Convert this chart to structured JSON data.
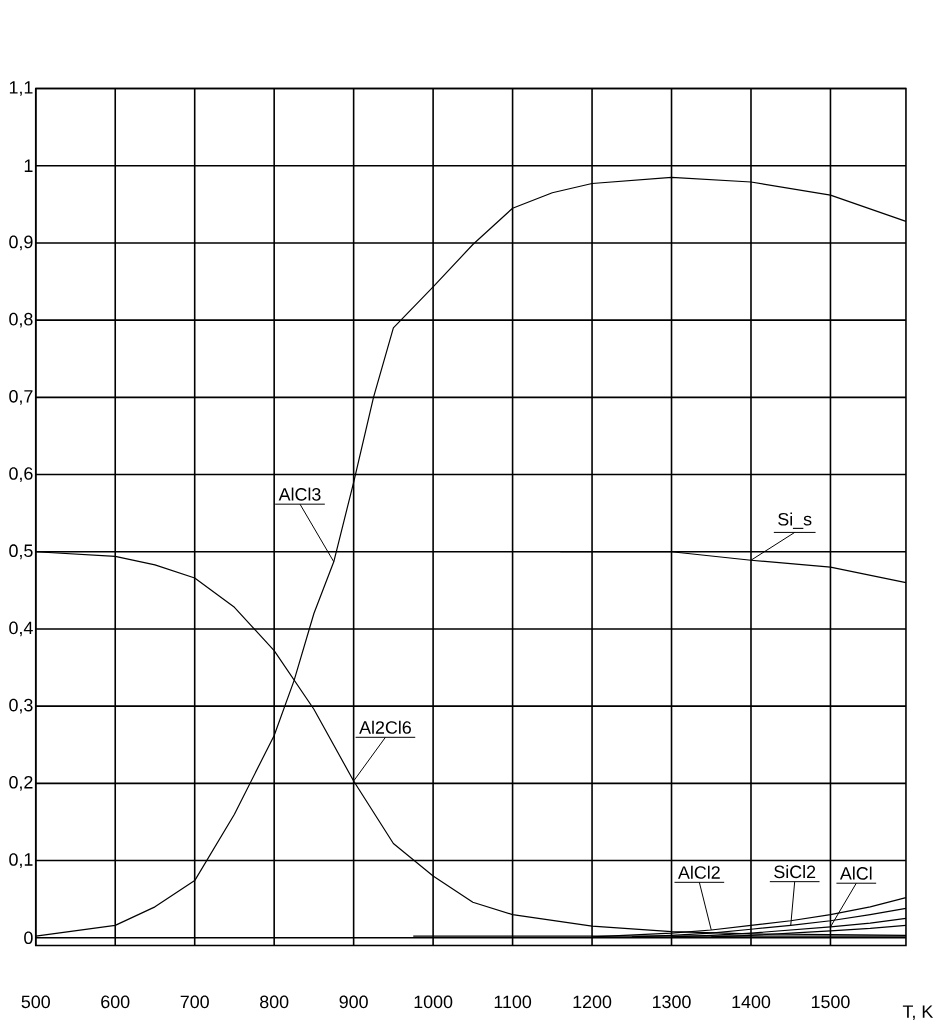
{
  "chart_data": {
    "type": "line",
    "xlabel": "T, K",
    "xlim": [
      500,
      1595
    ],
    "ylim": [
      -0.01,
      1.1
    ],
    "xticks": [
      500,
      600,
      700,
      800,
      900,
      1000,
      1100,
      1200,
      1300,
      1400,
      1500
    ],
    "yticks": [
      {
        "value": 0,
        "label": "0"
      },
      {
        "value": 0.1,
        "label": "0,1"
      },
      {
        "value": 0.2,
        "label": "0,2"
      },
      {
        "value": 0.3,
        "label": "0,3"
      },
      {
        "value": 0.4,
        "label": "0,4"
      },
      {
        "value": 0.5,
        "label": "0,5"
      },
      {
        "value": 0.6,
        "label": "0,6"
      },
      {
        "value": 0.7,
        "label": "0,7"
      },
      {
        "value": 0.8,
        "label": "0,8"
      },
      {
        "value": 0.9,
        "label": "0,9"
      },
      {
        "value": 1,
        "label": "1"
      },
      {
        "value": 1.1,
        "label": "1,1"
      }
    ],
    "grid": true,
    "marker": "none",
    "line_style": "solid",
    "series": [
      {
        "name": "AlCl3",
        "color": "#000000",
        "x": [
          500,
          600,
          650,
          700,
          750,
          800,
          825,
          850,
          875,
          900,
          925,
          950,
          1000,
          1050,
          1100,
          1150,
          1200,
          1300,
          1400,
          1500,
          1595
        ],
        "values": [
          0.002,
          0.016,
          0.04,
          0.074,
          0.16,
          0.262,
          0.333,
          0.42,
          0.487,
          0.59,
          0.7,
          0.79,
          0.843,
          0.898,
          0.945,
          0.965,
          0.977,
          0.985,
          0.979,
          0.962,
          0.928
        ]
      },
      {
        "name": "Al2Cl6",
        "color": "#000000",
        "x": [
          500,
          600,
          650,
          700,
          750,
          800,
          825,
          850,
          900,
          950,
          1000,
          1050,
          1100,
          1200,
          1300,
          1400,
          1500,
          1595
        ],
        "values": [
          0.5,
          0.494,
          0.483,
          0.466,
          0.428,
          0.372,
          0.334,
          0.296,
          0.203,
          0.122,
          0.08,
          0.046,
          0.03,
          0.015,
          0.008,
          0.005,
          0.004,
          0.003
        ]
      },
      {
        "name": "Si_s",
        "color": "#000000",
        "x": [
          1160,
          1300,
          1400,
          1500,
          1595
        ],
        "values": [
          0.5,
          0.5,
          0.489,
          0.48,
          0.46
        ]
      },
      {
        "name": "AlCl2",
        "color": "#000000",
        "x": [
          1200,
          1300,
          1350,
          1400,
          1450,
          1500,
          1550,
          1595
        ],
        "values": [
          0.001,
          0.006,
          0.01,
          0.016,
          0.022,
          0.03,
          0.04,
          0.052
        ]
      },
      {
        "name": "SiCl2",
        "color": "#000000",
        "x": [
          1250,
          1300,
          1350,
          1400,
          1450,
          1500,
          1550,
          1595
        ],
        "values": [
          0.001,
          0.003,
          0.006,
          0.011,
          0.016,
          0.022,
          0.03,
          0.038
        ]
      },
      {
        "name": "AlCl",
        "color": "#000000",
        "x": [
          1300,
          1350,
          1400,
          1450,
          1500,
          1550,
          1595
        ],
        "values": [
          0.001,
          0.003,
          0.006,
          0.01,
          0.014,
          0.019,
          0.025
        ]
      },
      {
        "color": "#000000",
        "x": [
          1350,
          1400,
          1450,
          1500,
          1550,
          1595
        ],
        "values": [
          0.001,
          0.003,
          0.006,
          0.009,
          0.012,
          0.016
        ]
      },
      {
        "color": "#000000",
        "x": [
          975,
          1100,
          1200,
          1300,
          1400,
          1500,
          1595
        ],
        "values": [
          0.002,
          0.002,
          0.002,
          0.002,
          0.002,
          0.002,
          0.002
        ]
      }
    ]
  }
}
